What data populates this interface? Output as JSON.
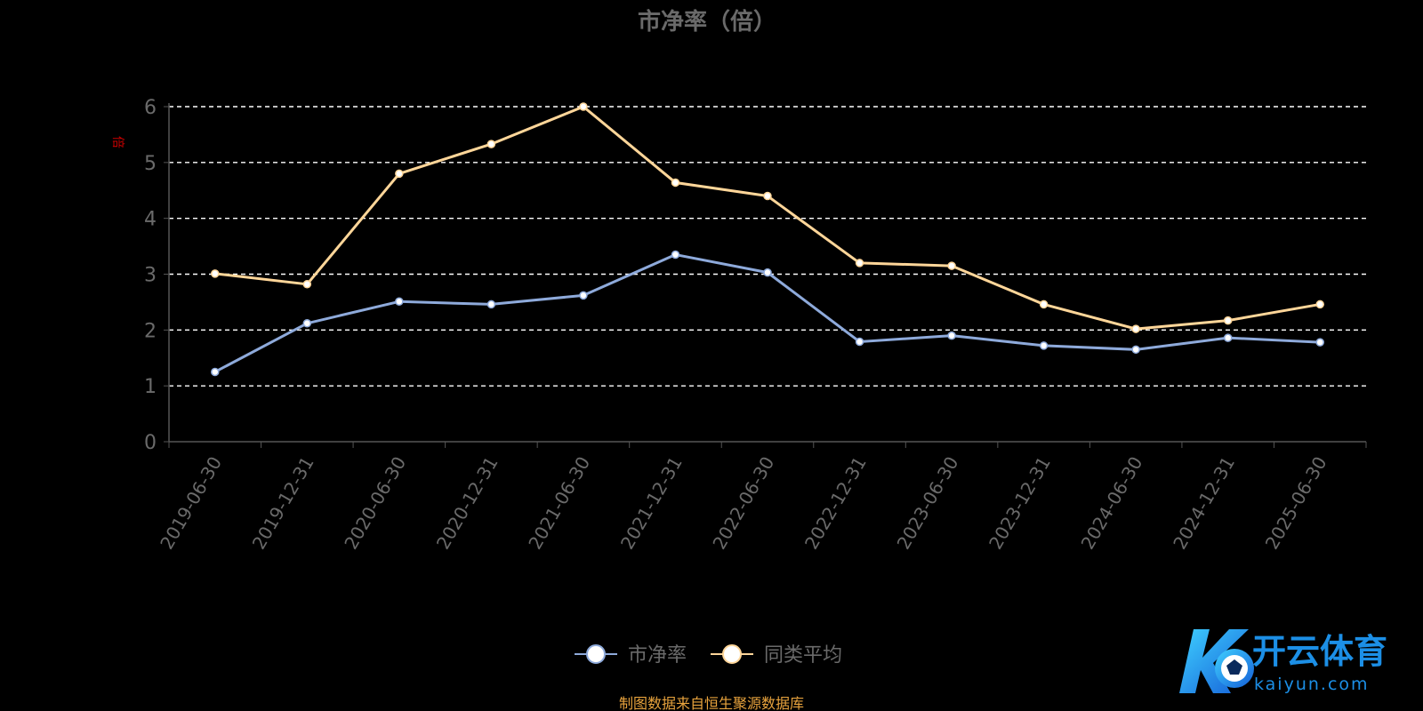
{
  "chart_data": {
    "type": "line",
    "title": "市净率（倍）",
    "ylabel": "倍",
    "xlabel": "",
    "ylim": [
      0,
      6
    ],
    "yticks": [
      0,
      1,
      2,
      3,
      4,
      5,
      6
    ],
    "grid": true,
    "legend_position": "bottom",
    "categories": [
      "2019-06-30",
      "2019-12-31",
      "2020-06-30",
      "2020-12-31",
      "2021-06-30",
      "2021-12-31",
      "2022-06-30",
      "2022-12-31",
      "2023-06-30",
      "2023-12-31",
      "2024-06-30",
      "2024-12-31",
      "2025-06-30"
    ],
    "series": [
      {
        "name": "市净率",
        "color": "#8eaadb",
        "values": [
          1.25,
          2.12,
          2.51,
          2.46,
          2.62,
          3.35,
          3.03,
          1.79,
          1.9,
          1.72,
          1.65,
          1.86,
          1.78
        ]
      },
      {
        "name": "同类平均",
        "color": "#ffd699",
        "values": [
          3.01,
          2.82,
          4.8,
          5.33,
          6.0,
          4.64,
          4.4,
          3.2,
          3.15,
          2.46,
          2.02,
          2.17,
          2.46
        ]
      }
    ]
  },
  "footer": {
    "source": "制图数据来自恒生聚源数据库"
  },
  "watermark": {
    "logo_text": "开云体育",
    "logo_url": "kaiyun.com"
  },
  "colors": {
    "axis": "#555555",
    "tick_label": "#6a6a6a",
    "ylabel": "#cc0000",
    "grid": "#ffffff",
    "source": "#e8a33d",
    "title": "#6a6a6a"
  }
}
